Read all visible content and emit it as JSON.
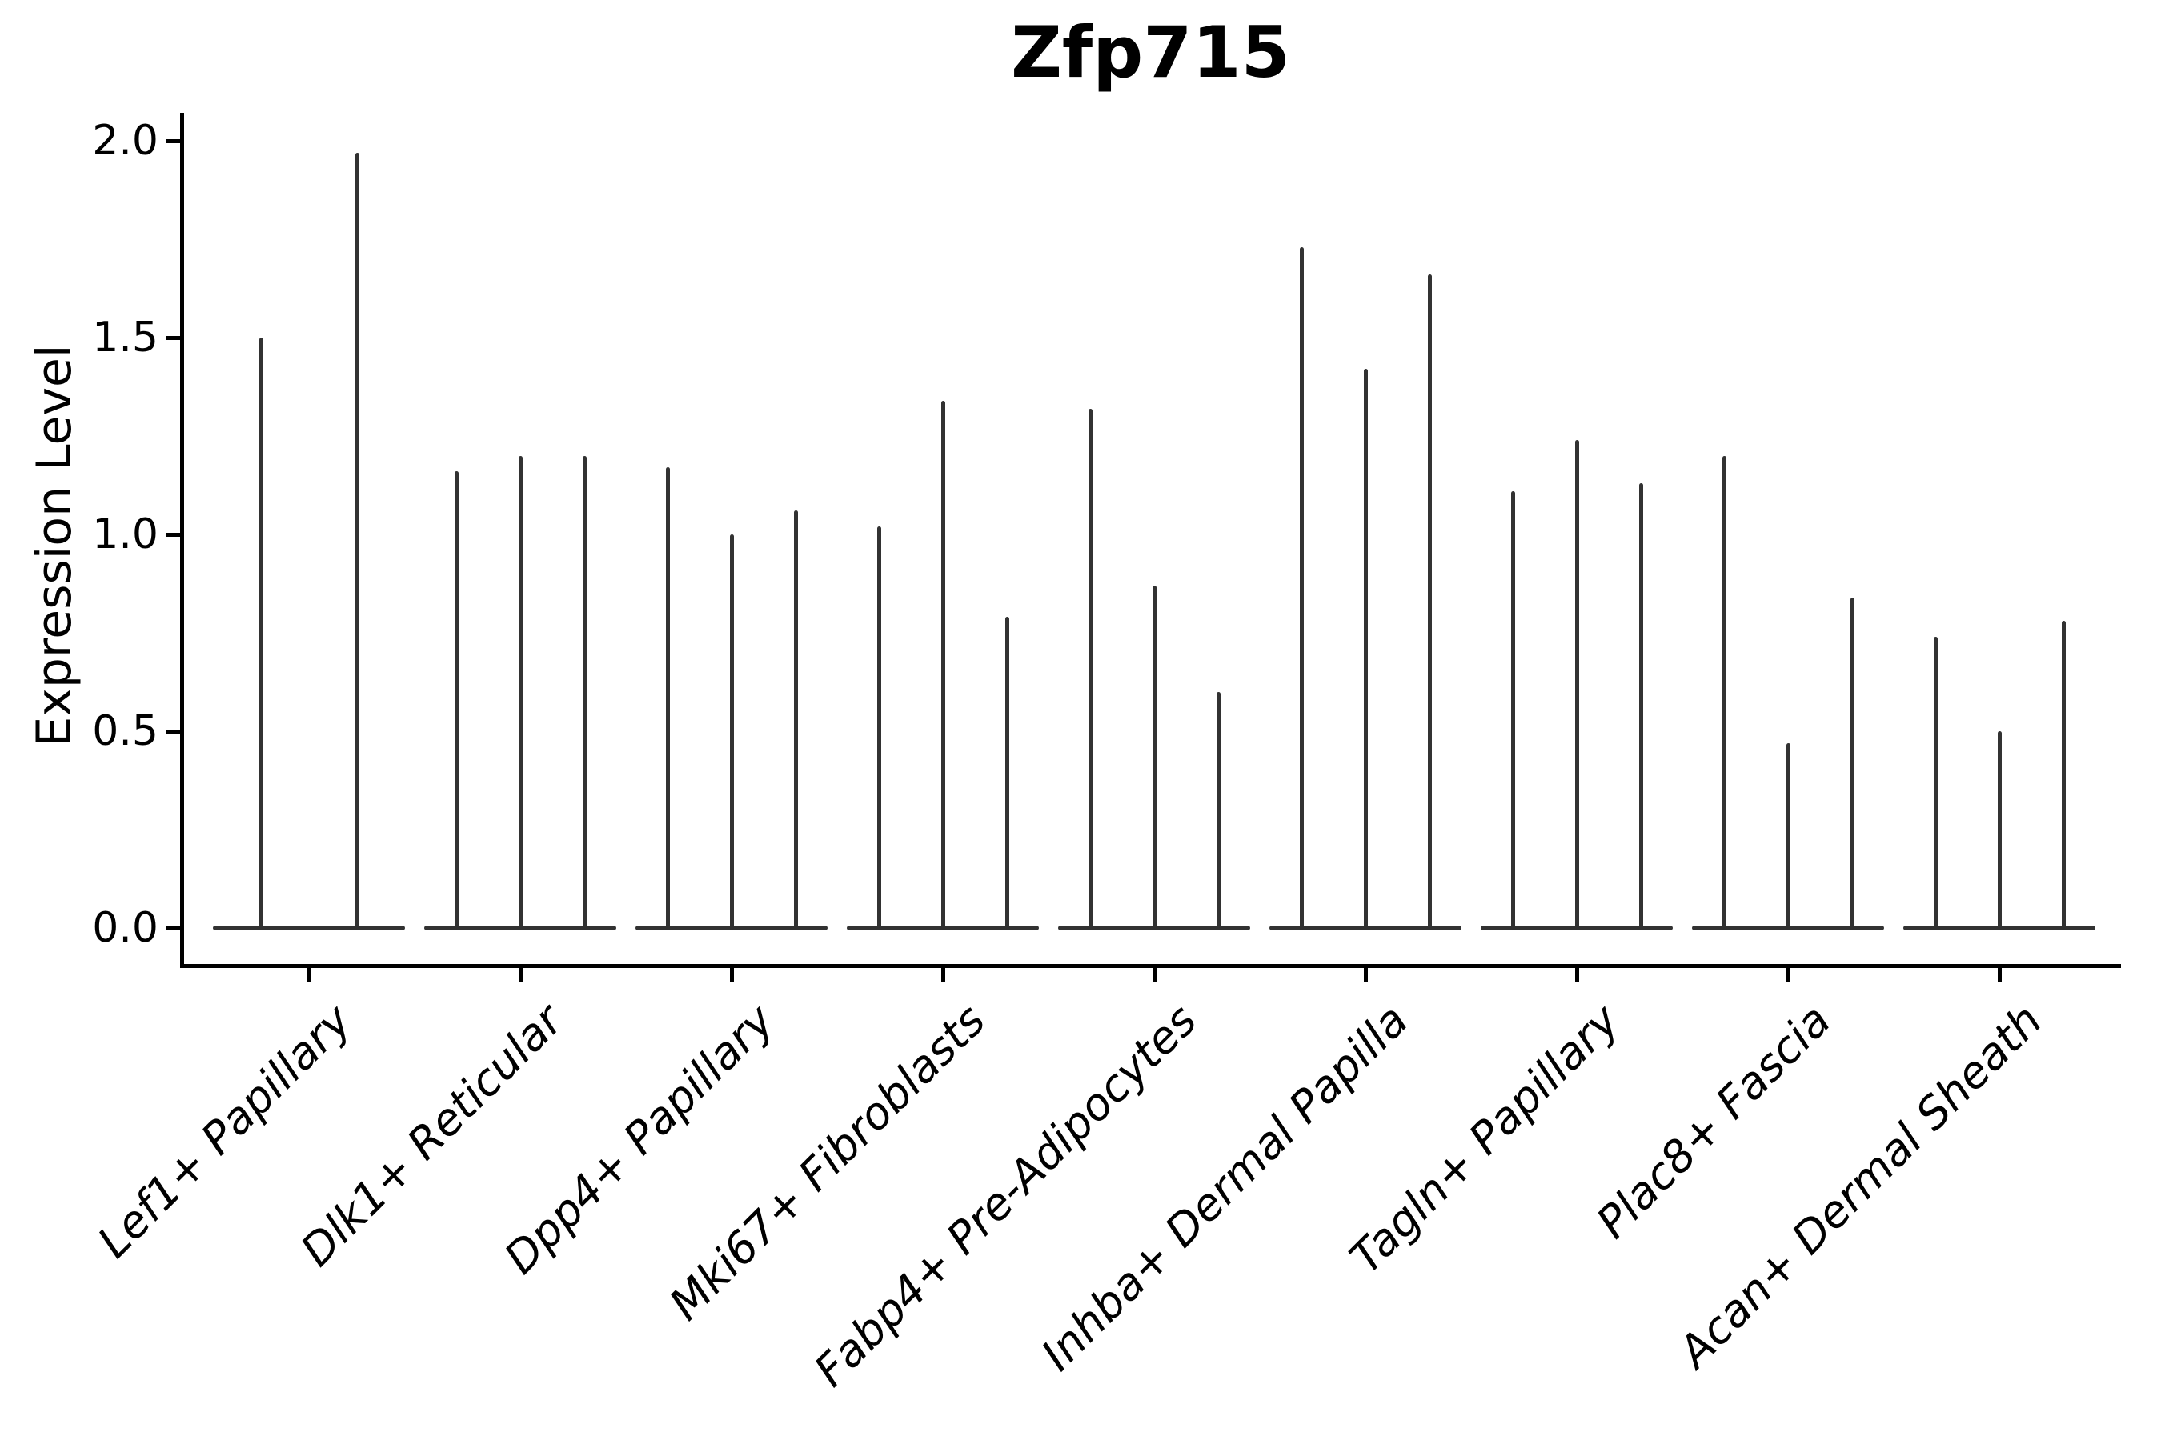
{
  "title": "Zfp715",
  "y_axis": {
    "label": "Expression Level",
    "ticks": [
      {
        "label": "0.0",
        "value": 0.0
      },
      {
        "label": "0.5",
        "value": 0.5
      },
      {
        "label": "1.0",
        "value": 1.0
      },
      {
        "label": "1.5",
        "value": 1.5
      },
      {
        "label": "2.0",
        "value": 2.0
      }
    ]
  },
  "colors": {
    "violin": "#323232",
    "axis": "#000000",
    "text": "#000000",
    "background": "#ffffff"
  },
  "chart_data": {
    "type": "violin",
    "title": "Zfp715",
    "xlabel": "",
    "ylabel": "Expression Level",
    "ylim": [
      -0.1,
      2.07
    ],
    "grid": false,
    "legend": null,
    "baseline_value": 0.0,
    "description": "Stacked thin violins per cell type; each violin has its density mass at 0 (flat base bar) with a thin spike rising to its maximum expression value.",
    "categories": [
      "Lef1+ Papillary",
      "Dlk1+ Reticular",
      "Dpp4+ Papillary",
      "Mki67+ Fibroblasts",
      "Fabp4+ Pre-Adipocytes",
      "Inhba+ Dermal Papilla",
      "Tagln+ Papillary",
      "Plac8+ Fascia",
      "Acan+ Dermal Sheath"
    ],
    "groups": [
      {
        "label": "Lef1+ Papillary",
        "violin_maxima": [
          1.5,
          1.97
        ]
      },
      {
        "label": "Dlk1+ Reticular",
        "violin_maxima": [
          1.16,
          1.2,
          1.2
        ]
      },
      {
        "label": "Dpp4+ Papillary",
        "violin_maxima": [
          1.17,
          1.0,
          1.06
        ]
      },
      {
        "label": "Mki67+ Fibroblasts",
        "violin_maxima": [
          1.02,
          1.34,
          0.79
        ]
      },
      {
        "label": "Fabp4+ Pre-Adipocytes",
        "violin_maxima": [
          1.32,
          0.87,
          0.6
        ]
      },
      {
        "label": "Inhba+ Dermal Papilla",
        "violin_maxima": [
          1.73,
          1.42,
          1.66
        ]
      },
      {
        "label": "Tagln+ Papillary",
        "violin_maxima": [
          1.11,
          1.24,
          1.13
        ]
      },
      {
        "label": "Plac8+ Fascia",
        "violin_maxima": [
          1.2,
          0.47,
          0.84
        ]
      },
      {
        "label": "Acan+ Dermal Sheath",
        "violin_maxima": [
          0.74,
          0.5,
          0.78
        ]
      }
    ]
  }
}
